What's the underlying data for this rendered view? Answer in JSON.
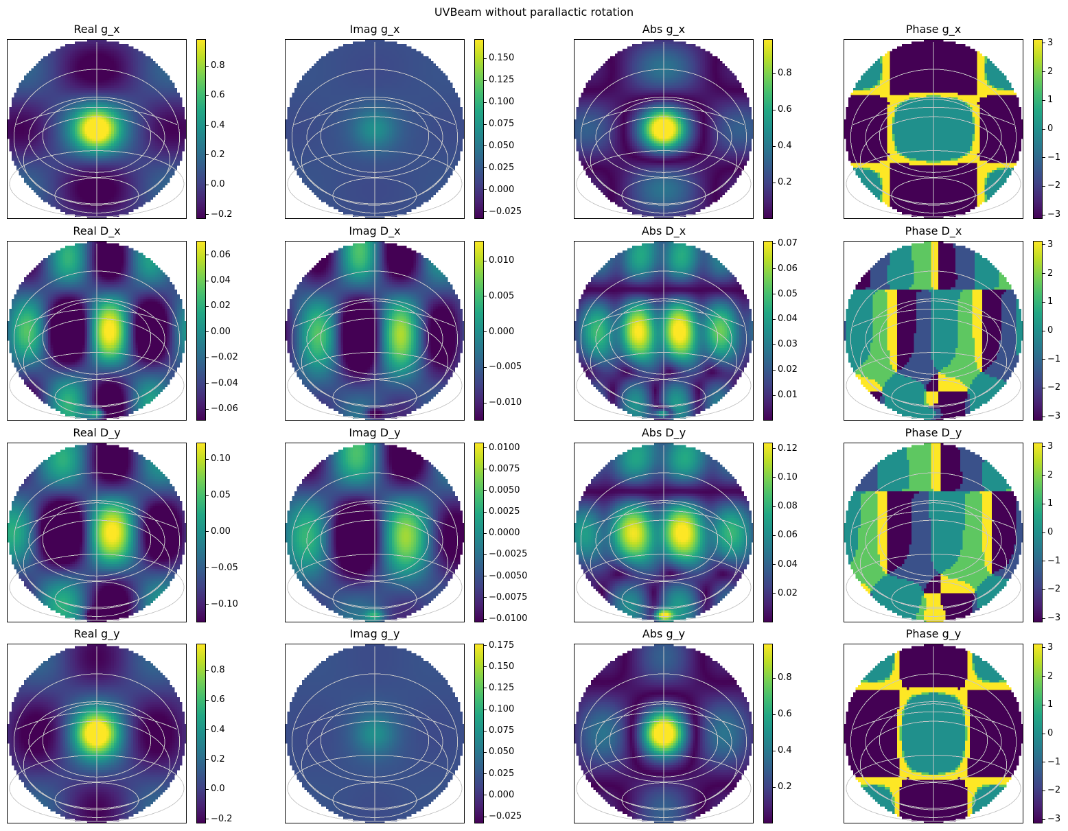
{
  "figure_title": "UVBeam without parallactic rotation",
  "colors": {
    "colormap": "viridis",
    "graticule": "#c8c8c8",
    "frame": "#000000",
    "background": "#ffffff"
  },
  "chart_data": [
    {
      "type": "heatmap",
      "title": "Real g_x",
      "kind": "real",
      "comp": "gx",
      "clim": [
        -0.23,
        0.98
      ],
      "ticks": [
        {
          "v": -0.2,
          "t": "−0.2"
        },
        {
          "v": 0,
          "t": "0.0"
        },
        {
          "v": 0.2,
          "t": "0.2"
        },
        {
          "v": 0.4,
          "t": "0.4"
        },
        {
          "v": 0.6,
          "t": "0.6"
        },
        {
          "v": 0.8,
          "t": "0.8"
        }
      ]
    },
    {
      "type": "heatmap",
      "title": "Imag g_x",
      "kind": "imag",
      "comp": "gx",
      "clim": [
        -0.033,
        0.172
      ],
      "ticks": [
        {
          "v": -0.025,
          "t": "−0.025"
        },
        {
          "v": 0,
          "t": "0.000"
        },
        {
          "v": 0.025,
          "t": "0.025"
        },
        {
          "v": 0.05,
          "t": "0.050"
        },
        {
          "v": 0.075,
          "t": "0.075"
        },
        {
          "v": 0.1,
          "t": "0.100"
        },
        {
          "v": 0.125,
          "t": "0.125"
        },
        {
          "v": 0.15,
          "t": "0.150"
        }
      ]
    },
    {
      "type": "heatmap",
      "title": "Abs g_x",
      "kind": "abs",
      "comp": "gx",
      "clim": [
        0.0,
        0.99
      ],
      "ticks": [
        {
          "v": 0.2,
          "t": "0.2"
        },
        {
          "v": 0.4,
          "t": "0.4"
        },
        {
          "v": 0.6,
          "t": "0.6"
        },
        {
          "v": 0.8,
          "t": "0.8"
        }
      ]
    },
    {
      "type": "heatmap",
      "title": "Phase g_x",
      "kind": "phase",
      "comp": "gx",
      "clim": [
        -3.1416,
        3.1416
      ],
      "ticks": [
        {
          "v": -3,
          "t": "−3"
        },
        {
          "v": -2,
          "t": "−2"
        },
        {
          "v": -1,
          "t": "−1"
        },
        {
          "v": 0,
          "t": "0"
        },
        {
          "v": 1,
          "t": "1"
        },
        {
          "v": 2,
          "t": "2"
        },
        {
          "v": 3,
          "t": "3"
        }
      ]
    },
    {
      "type": "heatmap",
      "title": "Real D_x",
      "kind": "real",
      "comp": "dx",
      "clim": [
        -0.069,
        0.071
      ],
      "ticks": [
        {
          "v": -0.06,
          "t": "−0.06"
        },
        {
          "v": -0.04,
          "t": "−0.04"
        },
        {
          "v": -0.02,
          "t": "−0.02"
        },
        {
          "v": 0,
          "t": "0.00"
        },
        {
          "v": 0.02,
          "t": "0.02"
        },
        {
          "v": 0.04,
          "t": "0.04"
        },
        {
          "v": 0.06,
          "t": "0.06"
        }
      ]
    },
    {
      "type": "heatmap",
      "title": "Imag D_x",
      "kind": "imag",
      "comp": "dx",
      "clim": [
        -0.0125,
        0.0128
      ],
      "ticks": [
        {
          "v": -0.01,
          "t": "−0.010"
        },
        {
          "v": -0.005,
          "t": "−0.005"
        },
        {
          "v": 0,
          "t": "0.000"
        },
        {
          "v": 0.005,
          "t": "0.005"
        },
        {
          "v": 0.01,
          "t": "0.010"
        }
      ]
    },
    {
      "type": "heatmap",
      "title": "Abs D_x",
      "kind": "abs",
      "comp": "dx",
      "clim": [
        0.0,
        0.071
      ],
      "ticks": [
        {
          "v": 0.01,
          "t": "0.01"
        },
        {
          "v": 0.02,
          "t": "0.02"
        },
        {
          "v": 0.03,
          "t": "0.03"
        },
        {
          "v": 0.04,
          "t": "0.04"
        },
        {
          "v": 0.05,
          "t": "0.05"
        },
        {
          "v": 0.06,
          "t": "0.06"
        },
        {
          "v": 0.07,
          "t": "0.07"
        }
      ]
    },
    {
      "type": "heatmap",
      "title": "Phase D_x",
      "kind": "phase",
      "comp": "dx",
      "clim": [
        -3.1416,
        3.1416
      ],
      "ticks": [
        {
          "v": -3,
          "t": "−3"
        },
        {
          "v": -2,
          "t": "−2"
        },
        {
          "v": -1,
          "t": "−1"
        },
        {
          "v": 0,
          "t": "0"
        },
        {
          "v": 1,
          "t": "1"
        },
        {
          "v": 2,
          "t": "2"
        },
        {
          "v": 3,
          "t": "3"
        }
      ]
    },
    {
      "type": "heatmap",
      "title": "Real D_y",
      "kind": "real",
      "comp": "dy",
      "clim": [
        -0.125,
        0.123
      ],
      "ticks": [
        {
          "v": -0.1,
          "t": "−0.10"
        },
        {
          "v": -0.05,
          "t": "−0.05"
        },
        {
          "v": 0,
          "t": "0.00"
        },
        {
          "v": 0.05,
          "t": "0.05"
        },
        {
          "v": 0.1,
          "t": "0.10"
        }
      ]
    },
    {
      "type": "heatmap",
      "title": "Imag D_y",
      "kind": "imag",
      "comp": "dy",
      "clim": [
        -0.0104,
        0.0106
      ],
      "ticks": [
        {
          "v": -0.01,
          "t": "−0.0100"
        },
        {
          "v": -0.0075,
          "t": "−0.0075"
        },
        {
          "v": -0.005,
          "t": "−0.0050"
        },
        {
          "v": -0.0025,
          "t": "−0.0025"
        },
        {
          "v": 0,
          "t": "0.0000"
        },
        {
          "v": 0.0025,
          "t": "0.0025"
        },
        {
          "v": 0.005,
          "t": "0.0050"
        },
        {
          "v": 0.0075,
          "t": "0.0075"
        },
        {
          "v": 0.01,
          "t": "0.0100"
        }
      ]
    },
    {
      "type": "heatmap",
      "title": "Abs D_y",
      "kind": "abs",
      "comp": "dy",
      "clim": [
        0.0,
        0.124
      ],
      "ticks": [
        {
          "v": 0.02,
          "t": "0.02"
        },
        {
          "v": 0.04,
          "t": "0.04"
        },
        {
          "v": 0.06,
          "t": "0.06"
        },
        {
          "v": 0.08,
          "t": "0.08"
        },
        {
          "v": 0.1,
          "t": "0.10"
        },
        {
          "v": 0.12,
          "t": "0.12"
        }
      ]
    },
    {
      "type": "heatmap",
      "title": "Phase D_y",
      "kind": "phase",
      "comp": "dy",
      "clim": [
        -3.1416,
        3.1416
      ],
      "ticks": [
        {
          "v": -3,
          "t": "−3"
        },
        {
          "v": -2,
          "t": "−2"
        },
        {
          "v": -1,
          "t": "−1"
        },
        {
          "v": 0,
          "t": "0"
        },
        {
          "v": 1,
          "t": "1"
        },
        {
          "v": 2,
          "t": "2"
        },
        {
          "v": 3,
          "t": "3"
        }
      ]
    },
    {
      "type": "heatmap",
      "title": "Real g_y",
      "kind": "real",
      "comp": "gy",
      "clim": [
        -0.23,
        0.98
      ],
      "ticks": [
        {
          "v": -0.2,
          "t": "−0.2"
        },
        {
          "v": 0,
          "t": "0.0"
        },
        {
          "v": 0.2,
          "t": "0.2"
        },
        {
          "v": 0.4,
          "t": "0.4"
        },
        {
          "v": 0.6,
          "t": "0.6"
        },
        {
          "v": 0.8,
          "t": "0.8"
        }
      ]
    },
    {
      "type": "heatmap",
      "title": "Imag g_y",
      "kind": "imag",
      "comp": "gy",
      "clim": [
        -0.033,
        0.177
      ],
      "ticks": [
        {
          "v": -0.025,
          "t": "−0.025"
        },
        {
          "v": 0,
          "t": "0.000"
        },
        {
          "v": 0.025,
          "t": "0.025"
        },
        {
          "v": 0.05,
          "t": "0.050"
        },
        {
          "v": 0.075,
          "t": "0.075"
        },
        {
          "v": 0.1,
          "t": "0.100"
        },
        {
          "v": 0.125,
          "t": "0.125"
        },
        {
          "v": 0.15,
          "t": "0.150"
        },
        {
          "v": 0.175,
          "t": "0.175"
        }
      ]
    },
    {
      "type": "heatmap",
      "title": "Abs g_y",
      "kind": "abs",
      "comp": "gy",
      "clim": [
        0.0,
        0.99
      ],
      "ticks": [
        {
          "v": 0.2,
          "t": "0.2"
        },
        {
          "v": 0.4,
          "t": "0.4"
        },
        {
          "v": 0.6,
          "t": "0.6"
        },
        {
          "v": 0.8,
          "t": "0.8"
        }
      ]
    },
    {
      "type": "heatmap",
      "title": "Phase g_y",
      "kind": "phase",
      "comp": "gy",
      "clim": [
        -3.1416,
        3.1416
      ],
      "ticks": [
        {
          "v": -3,
          "t": "−3"
        },
        {
          "v": -2,
          "t": "−2"
        },
        {
          "v": -1,
          "t": "−1"
        },
        {
          "v": 0,
          "t": "0"
        },
        {
          "v": 1,
          "t": "1"
        },
        {
          "v": 2,
          "t": "2"
        },
        {
          "v": 3,
          "t": "3"
        }
      ]
    }
  ]
}
